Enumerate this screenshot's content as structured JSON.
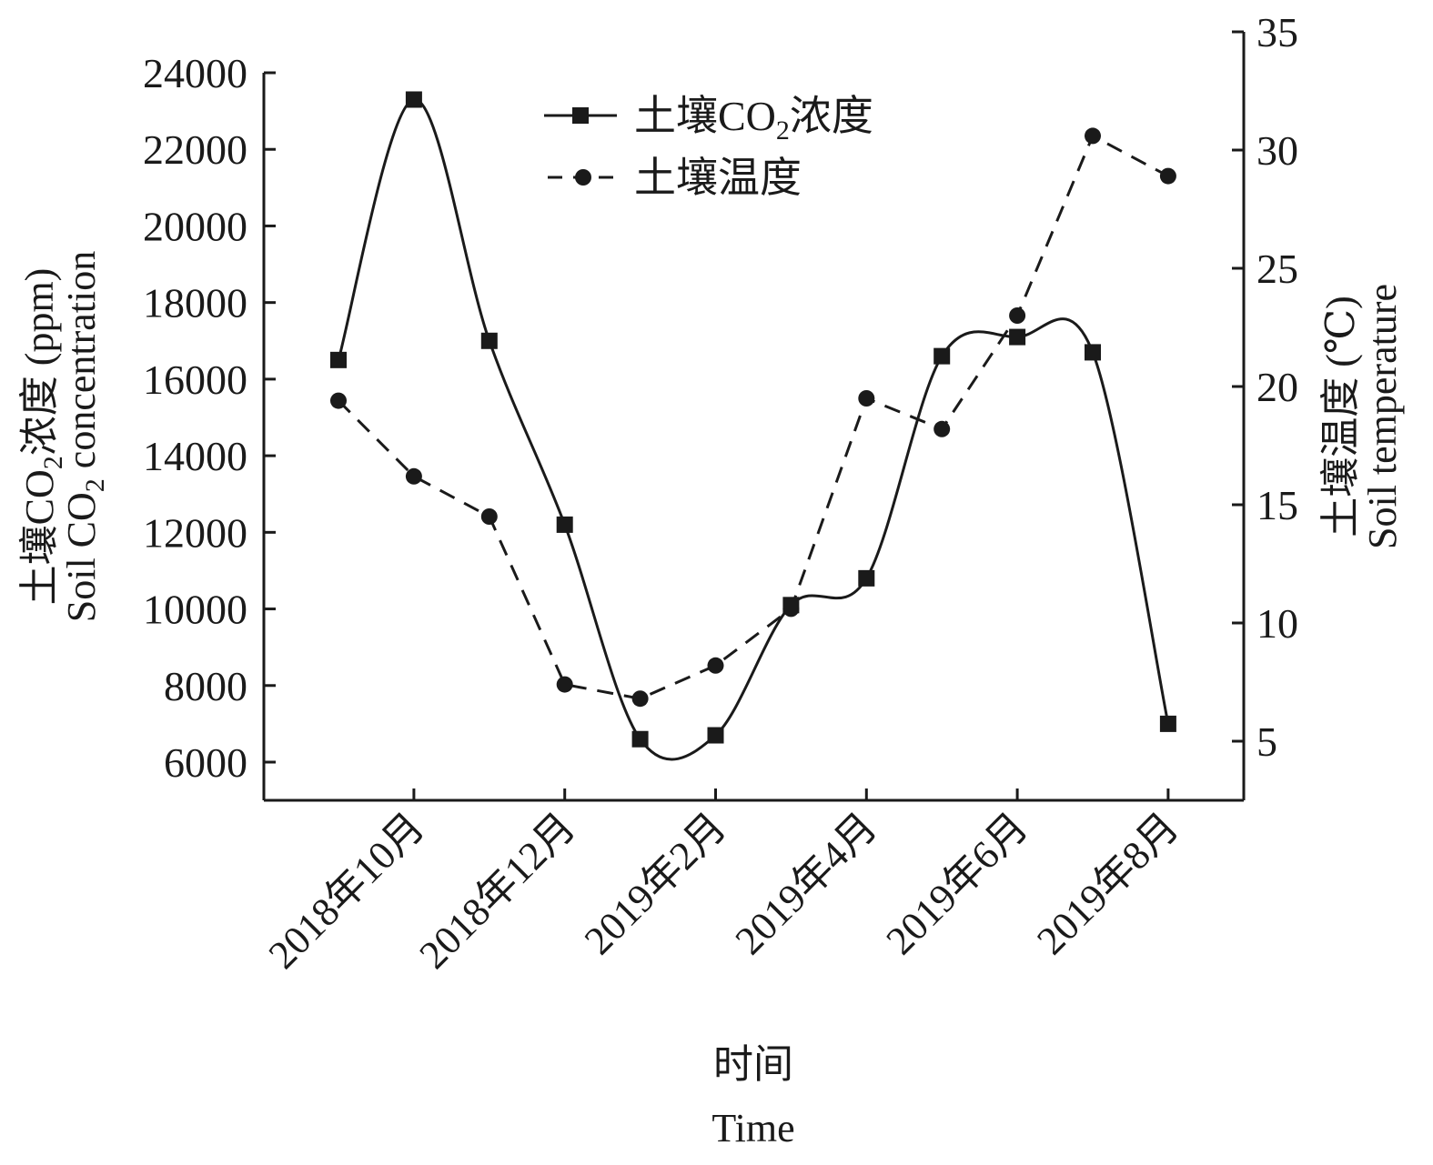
{
  "chart_data": {
    "type": "line",
    "x_axis": {
      "title_cn": "时间",
      "title_en": "Time",
      "tick_labels": [
        "2018年10月",
        "2018年12月",
        "2019年2月",
        "2019年4月",
        "2019年6月",
        "2019年8月"
      ],
      "tick_index": [
        1,
        3,
        5,
        7,
        9,
        11
      ]
    },
    "y_left": {
      "title_cn_parts": [
        "土壤CO",
        "2",
        "浓度 (ppm)"
      ],
      "title_en_parts": [
        "Soil CO",
        "2",
        " concentration"
      ],
      "ticks": [
        6000,
        8000,
        10000,
        12000,
        14000,
        16000,
        18000,
        20000,
        22000,
        24000
      ],
      "ylim": [
        5000,
        24000
      ]
    },
    "y_right": {
      "title_cn": "土壤温度 (℃)",
      "title_en": "Soil temperature",
      "ticks": [
        5,
        10,
        15,
        20,
        25,
        30,
        35
      ],
      "ylim": [
        2.5,
        35
      ]
    },
    "x_index": [
      0,
      1,
      2,
      3,
      4,
      5,
      6,
      7,
      8,
      9,
      10,
      11
    ],
    "series": [
      {
        "name_parts": [
          "土壤CO",
          "2",
          "浓度"
        ],
        "axis": "left",
        "line_style": "solid-smooth",
        "marker": "square",
        "values": [
          16500,
          23300,
          17000,
          12200,
          6600,
          6700,
          10100,
          10800,
          16600,
          17100,
          16700,
          7000
        ]
      },
      {
        "name": "土壤温度",
        "axis": "right",
        "line_style": "dashed",
        "marker": "circle",
        "values": [
          19.4,
          16.2,
          14.5,
          7.4,
          6.8,
          8.2,
          10.6,
          19.5,
          18.2,
          23.0,
          30.6,
          28.9
        ]
      }
    ],
    "legend_position": "top-center",
    "grid": false
  }
}
